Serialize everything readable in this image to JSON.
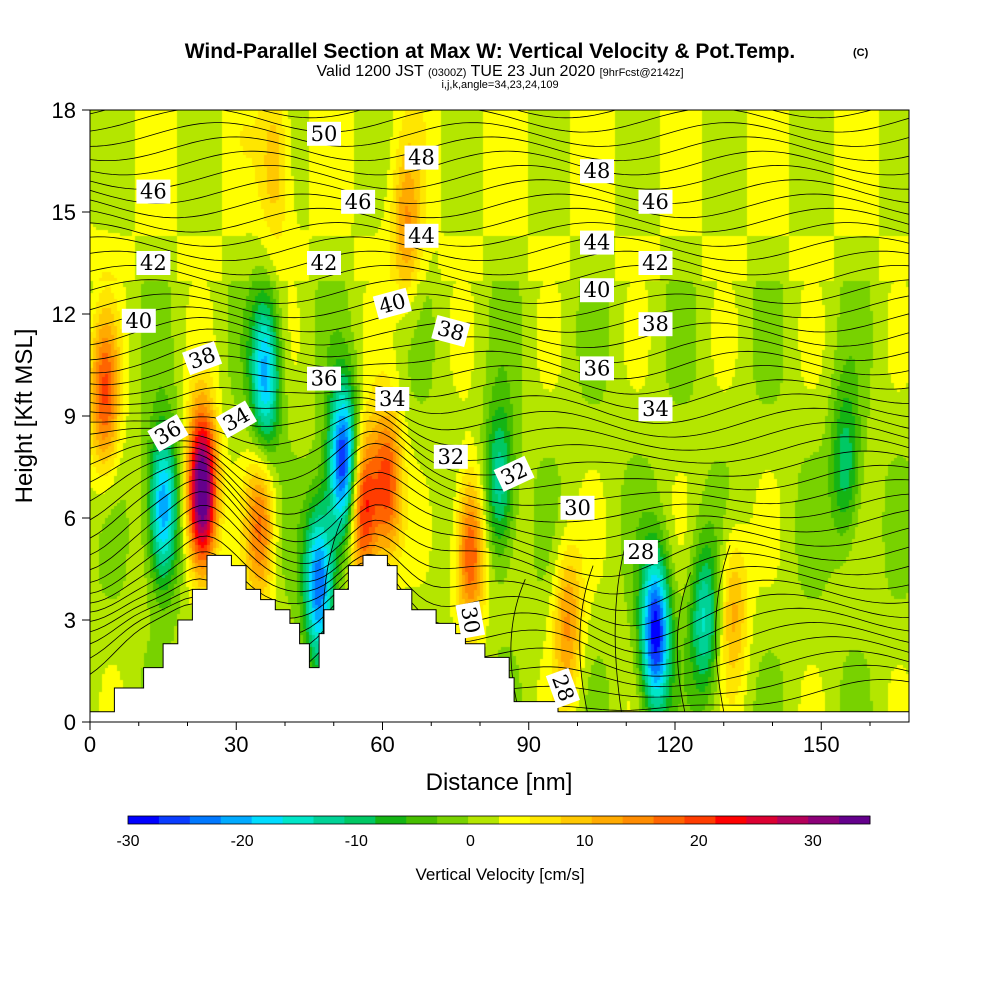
{
  "title": {
    "main": "Wind-Parallel Section at Max W: Vertical Velocity & Pot.Temp.",
    "mark": "(C)",
    "valid_prefix": "Valid 1200 JST",
    "valid_utc": "(0300Z)",
    "valid_date": "TUE 23 Jun 2020",
    "forecast": "[9hrFcst@2142z]",
    "indices": "i,j,k,angle=34,23,24,109"
  },
  "chart_data": {
    "type": "heatmap",
    "xlabel": "Distance [nm]",
    "ylabel": "Height [Kft MSL]",
    "xlim": [
      0,
      168
    ],
    "ylim": [
      0,
      18
    ],
    "xticks": [
      0,
      30,
      60,
      90,
      120,
      150
    ],
    "yticks": [
      0,
      3,
      6,
      9,
      12,
      15,
      18
    ],
    "colorbar": {
      "label": "Vertical Velocity [cm/s]",
      "range": [
        -30,
        35
      ],
      "step": 2.5,
      "ticks": [
        -30,
        -20,
        -10,
        0,
        10,
        20,
        30
      ],
      "colors": [
        "#0000ff",
        "#0a3cff",
        "#0078ff",
        "#00aaff",
        "#00dcff",
        "#00e6c8",
        "#00d296",
        "#00c864",
        "#14b414",
        "#46be00",
        "#78d200",
        "#b4e600",
        "#ffff00",
        "#ffe600",
        "#ffc800",
        "#ffaa00",
        "#ff8c00",
        "#ff6400",
        "#ff3c00",
        "#ff0000",
        "#dc0032",
        "#b4005a",
        "#8c0078",
        "#64008c"
      ]
    },
    "terrain": [
      [
        0,
        0.3
      ],
      [
        5,
        0.3
      ],
      [
        5,
        1.0
      ],
      [
        11,
        1.0
      ],
      [
        11,
        1.6
      ],
      [
        15,
        1.6
      ],
      [
        15,
        2.3
      ],
      [
        18,
        2.3
      ],
      [
        18,
        3.0
      ],
      [
        21,
        3.0
      ],
      [
        21,
        3.9
      ],
      [
        24,
        3.9
      ],
      [
        24,
        4.9
      ],
      [
        29,
        4.9
      ],
      [
        29,
        4.6
      ],
      [
        32,
        4.6
      ],
      [
        32,
        3.9
      ],
      [
        35,
        3.9
      ],
      [
        35,
        3.6
      ],
      [
        38,
        3.6
      ],
      [
        38,
        3.3
      ],
      [
        41,
        3.3
      ],
      [
        41,
        2.9
      ],
      [
        43,
        2.9
      ],
      [
        43,
        2.3
      ],
      [
        45,
        2.3
      ],
      [
        45,
        1.6
      ],
      [
        47,
        1.6
      ],
      [
        47,
        2.6
      ],
      [
        48,
        2.6
      ],
      [
        48,
        3.3
      ],
      [
        50,
        3.3
      ],
      [
        50,
        3.9
      ],
      [
        53,
        3.9
      ],
      [
        53,
        4.6
      ],
      [
        56,
        4.6
      ],
      [
        56,
        4.9
      ],
      [
        61,
        4.9
      ],
      [
        61,
        4.6
      ],
      [
        63,
        4.6
      ],
      [
        63,
        3.9
      ],
      [
        66,
        3.9
      ],
      [
        66,
        3.3
      ],
      [
        71,
        3.3
      ],
      [
        71,
        2.9
      ],
      [
        75,
        2.9
      ],
      [
        75,
        2.6
      ],
      [
        77,
        2.6
      ],
      [
        77,
        2.3
      ],
      [
        81,
        2.3
      ],
      [
        81,
        1.9
      ],
      [
        86,
        1.9
      ],
      [
        86,
        1.3
      ],
      [
        87,
        1.3
      ],
      [
        87,
        0.6
      ],
      [
        96,
        0.6
      ],
      [
        96,
        0.3
      ],
      [
        168,
        0.3
      ]
    ],
    "vertical_velocity_features": [
      {
        "x": 23,
        "y": 6.8,
        "w": 36
      },
      {
        "x": 15,
        "y": 6.3,
        "w": -22
      },
      {
        "x": 36,
        "y": 10.2,
        "w": -20
      },
      {
        "x": 35,
        "y": 5.8,
        "w": 14
      },
      {
        "x": 47,
        "y": 4.1,
        "w": -24
      },
      {
        "x": 52,
        "y": 7.6,
        "w": -28
      },
      {
        "x": 56,
        "y": 6.3,
        "w": 22
      },
      {
        "x": 61,
        "y": 7.0,
        "w": 18
      },
      {
        "x": 78,
        "y": 5.0,
        "w": 18
      },
      {
        "x": 84,
        "y": 7.0,
        "w": -14
      },
      {
        "x": 98,
        "y": 2.9,
        "w": 12
      },
      {
        "x": 116,
        "y": 2.6,
        "w": -28
      },
      {
        "x": 126,
        "y": 3.0,
        "w": -14
      },
      {
        "x": 132,
        "y": 3.4,
        "w": 10
      },
      {
        "x": 3,
        "y": 9.6,
        "w": 16
      },
      {
        "x": 38,
        "y": 16.5,
        "w": 8
      },
      {
        "x": 65,
        "y": 14.5,
        "w": 10
      },
      {
        "x": 155,
        "y": 7.5,
        "w": -11
      }
    ],
    "isentrope_labels": [
      {
        "text": "50",
        "x": 48,
        "y": 17.3,
        "angle": 0
      },
      {
        "text": "48",
        "x": 68,
        "y": 16.6,
        "angle": 0
      },
      {
        "text": "48",
        "x": 104,
        "y": 16.2,
        "angle": 0
      },
      {
        "text": "46",
        "x": 13,
        "y": 15.6,
        "angle": 0
      },
      {
        "text": "46",
        "x": 55,
        "y": 15.3,
        "angle": 0
      },
      {
        "text": "46",
        "x": 116,
        "y": 15.3,
        "angle": 0
      },
      {
        "text": "44",
        "x": 68,
        "y": 14.3,
        "angle": 0
      },
      {
        "text": "44",
        "x": 104,
        "y": 14.1,
        "angle": 0
      },
      {
        "text": "42",
        "x": 13,
        "y": 13.5,
        "angle": 0
      },
      {
        "text": "42",
        "x": 48,
        "y": 13.5,
        "angle": 0
      },
      {
        "text": "42",
        "x": 116,
        "y": 13.5,
        "angle": 0
      },
      {
        "text": "40",
        "x": 10,
        "y": 11.8,
        "angle": 0
      },
      {
        "text": "40",
        "x": 62,
        "y": 12.3,
        "angle": -15
      },
      {
        "text": "40",
        "x": 104,
        "y": 12.7,
        "angle": 0
      },
      {
        "text": "38",
        "x": 23,
        "y": 10.7,
        "angle": -20
      },
      {
        "text": "38",
        "x": 74,
        "y": 11.5,
        "angle": 15
      },
      {
        "text": "38",
        "x": 116,
        "y": 11.7,
        "angle": 0
      },
      {
        "text": "36",
        "x": 16,
        "y": 8.5,
        "angle": -30
      },
      {
        "text": "36",
        "x": 48,
        "y": 10.1,
        "angle": 0
      },
      {
        "text": "36",
        "x": 104,
        "y": 10.4,
        "angle": 0
      },
      {
        "text": "34",
        "x": 30,
        "y": 8.9,
        "angle": -30
      },
      {
        "text": "34",
        "x": 62,
        "y": 9.5,
        "angle": 0
      },
      {
        "text": "34",
        "x": 116,
        "y": 9.2,
        "angle": 0
      },
      {
        "text": "32",
        "x": 74,
        "y": 7.8,
        "angle": 0
      },
      {
        "text": "32",
        "x": 87,
        "y": 7.3,
        "angle": -25
      },
      {
        "text": "30",
        "x": 100,
        "y": 6.3,
        "angle": 0
      },
      {
        "text": "30",
        "x": 78,
        "y": 3.0,
        "angle": 80
      },
      {
        "text": "28",
        "x": 113,
        "y": 5.0,
        "angle": 0
      },
      {
        "text": "28",
        "x": 97,
        "y": 1.0,
        "angle": 70
      }
    ]
  }
}
